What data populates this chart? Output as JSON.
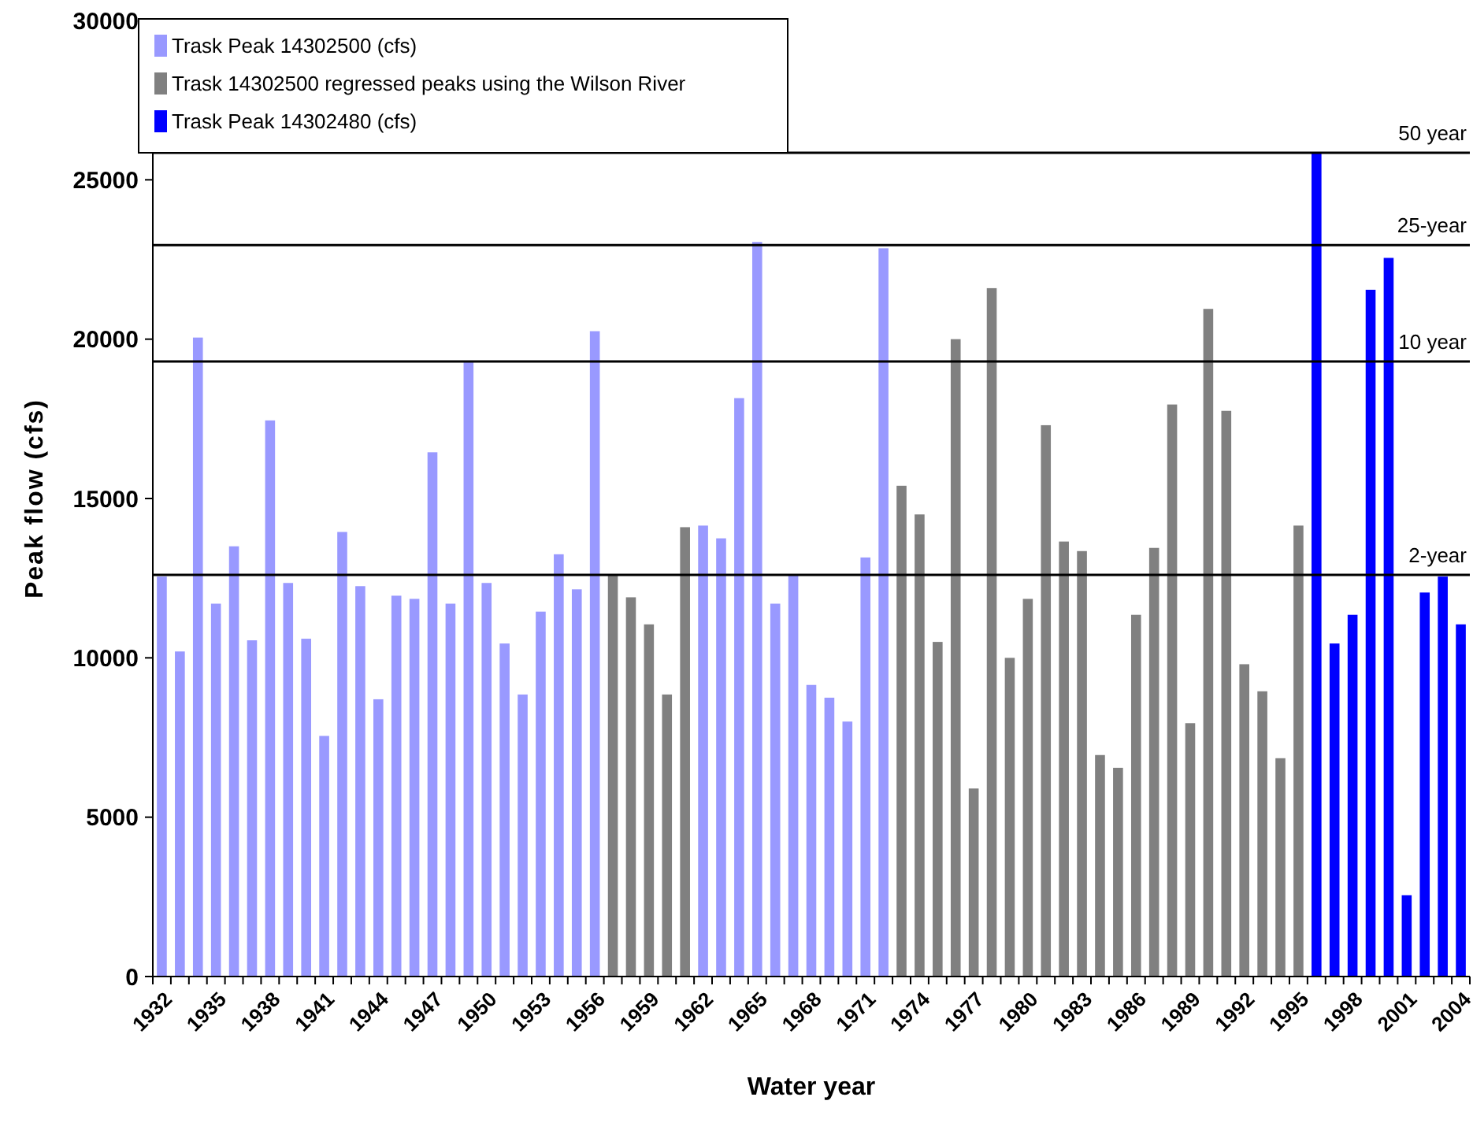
{
  "chart_data": {
    "type": "bar",
    "xlabel": "Water year",
    "ylabel": "Peak flow (cfs)",
    "categories": [
      "1932",
      null,
      null,
      "1935",
      null,
      null,
      "1938",
      null,
      null,
      "1941",
      null,
      null,
      "1944",
      null,
      null,
      "1947",
      null,
      null,
      "1950",
      null,
      null,
      "1953",
      null,
      null,
      "1956",
      null,
      null,
      "1959",
      null,
      null,
      "1962",
      null,
      null,
      "1965",
      null,
      null,
      "1968",
      null,
      null,
      "1971",
      null,
      null,
      "1974",
      null,
      null,
      "1977",
      null,
      null,
      "1980",
      null,
      null,
      "1983",
      null,
      null,
      "1986",
      null,
      null,
      "1989",
      null,
      null,
      "1992",
      null,
      null,
      "1995",
      null,
      null,
      "1998",
      null,
      null,
      "2001",
      null,
      null,
      "2004"
    ],
    "series": [
      {
        "name": "Trask Peak 14302500 (cfs)",
        "color": "#9999ff",
        "values": [
          12550,
          10200,
          20050,
          11700,
          13500,
          10550,
          17450,
          12350,
          10600,
          7550,
          13950,
          12250,
          8700,
          11950,
          11850,
          16450,
          11700,
          19300,
          12350,
          10450,
          8850,
          11450,
          13250,
          12150,
          20250,
          null,
          null,
          null,
          null,
          null,
          14150,
          13750,
          18150,
          23050,
          11700,
          12600,
          9150,
          8750,
          8000,
          13150,
          22850,
          null,
          null,
          null,
          null,
          null,
          null,
          null,
          null,
          null,
          null,
          null,
          null,
          null,
          null,
          null,
          null,
          null,
          null,
          null,
          null,
          null,
          null,
          null,
          null,
          null,
          null,
          null,
          null,
          null,
          null,
          null,
          null
        ]
      },
      {
        "name": "Trask 14302500 regressed peaks using the Wilson River",
        "color": "#808080",
        "values": [
          null,
          null,
          null,
          null,
          null,
          null,
          null,
          null,
          null,
          null,
          null,
          null,
          null,
          null,
          null,
          null,
          null,
          null,
          null,
          null,
          null,
          null,
          null,
          null,
          null,
          12600,
          11900,
          11050,
          8850,
          14100,
          null,
          null,
          null,
          null,
          null,
          null,
          null,
          null,
          null,
          null,
          null,
          15400,
          14500,
          10500,
          20000,
          5900,
          21600,
          10000,
          11850,
          17300,
          13650,
          13350,
          6950,
          6550,
          11350,
          13450,
          17950,
          7950,
          20950,
          17750,
          9800,
          8950,
          6850,
          14150,
          null,
          null,
          null,
          null,
          null,
          null,
          null,
          null,
          null
        ]
      },
      {
        "name": "Trask Peak 14302480 (cfs)",
        "color": "#0000ff",
        "values": [
          null,
          null,
          null,
          null,
          null,
          null,
          null,
          null,
          null,
          null,
          null,
          null,
          null,
          null,
          null,
          null,
          null,
          null,
          null,
          null,
          null,
          null,
          null,
          null,
          null,
          null,
          null,
          null,
          null,
          null,
          null,
          null,
          null,
          null,
          null,
          null,
          null,
          null,
          null,
          null,
          null,
          null,
          null,
          null,
          null,
          null,
          null,
          null,
          null,
          null,
          null,
          null,
          null,
          null,
          null,
          null,
          null,
          null,
          null,
          null,
          null,
          null,
          null,
          null,
          25850,
          10450,
          11350,
          21550,
          22550,
          2550,
          12050,
          12550,
          11050
        ]
      }
    ],
    "ylim": [
      0,
      30000
    ],
    "yticks": [
      0,
      5000,
      10000,
      15000,
      20000,
      25000,
      30000
    ],
    "grid": false,
    "legend": "top left",
    "ref_lines": [
      {
        "axis": "y",
        "value": 25850,
        "label": "50 year"
      },
      {
        "axis": "y",
        "value": 22950,
        "label": "25-year"
      },
      {
        "axis": "y",
        "value": 19300,
        "label": "10 year"
      },
      {
        "axis": "y",
        "value": 12600,
        "label": "2-year"
      }
    ]
  }
}
